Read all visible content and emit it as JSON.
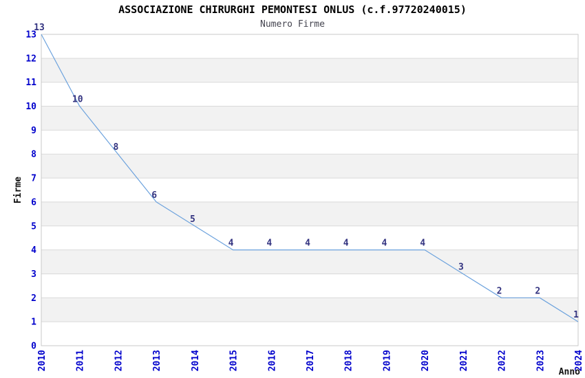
{
  "chart_data": {
    "type": "line",
    "title": "ASSOCIAZIONE CHIRURGHI PEMONTESI ONLUS (c.f.97720240015)",
    "subtitle": "Numero Firme",
    "xlabel": "Anno",
    "ylabel": "Firme",
    "categories": [
      "2010",
      "2011",
      "2012",
      "2013",
      "2014",
      "2015",
      "2016",
      "2017",
      "2018",
      "2019",
      "2020",
      "2021",
      "2022",
      "2023",
      "2024"
    ],
    "values": [
      13,
      10,
      8,
      6,
      5,
      4,
      4,
      4,
      4,
      4,
      4,
      3,
      2,
      2,
      1
    ],
    "yticks": [
      0,
      1,
      2,
      3,
      4,
      5,
      6,
      7,
      8,
      9,
      10,
      11,
      12,
      13
    ],
    "ylim": [
      0,
      13
    ],
    "grid": true,
    "banding": "alternating horizontal bands between odd and even y values",
    "x_tick_rotation": -90,
    "legend": "none",
    "colors": {
      "background": "#ffffff",
      "band": "#f2f2f2",
      "grid": "#d9d9d9",
      "border": "#c9c9c9",
      "line": "#6ca2dd",
      "tick_label": "#0000cc",
      "data_label": "#333380",
      "title": "#000000",
      "subtitle": "#44444f",
      "axis_title": "#111111"
    }
  }
}
